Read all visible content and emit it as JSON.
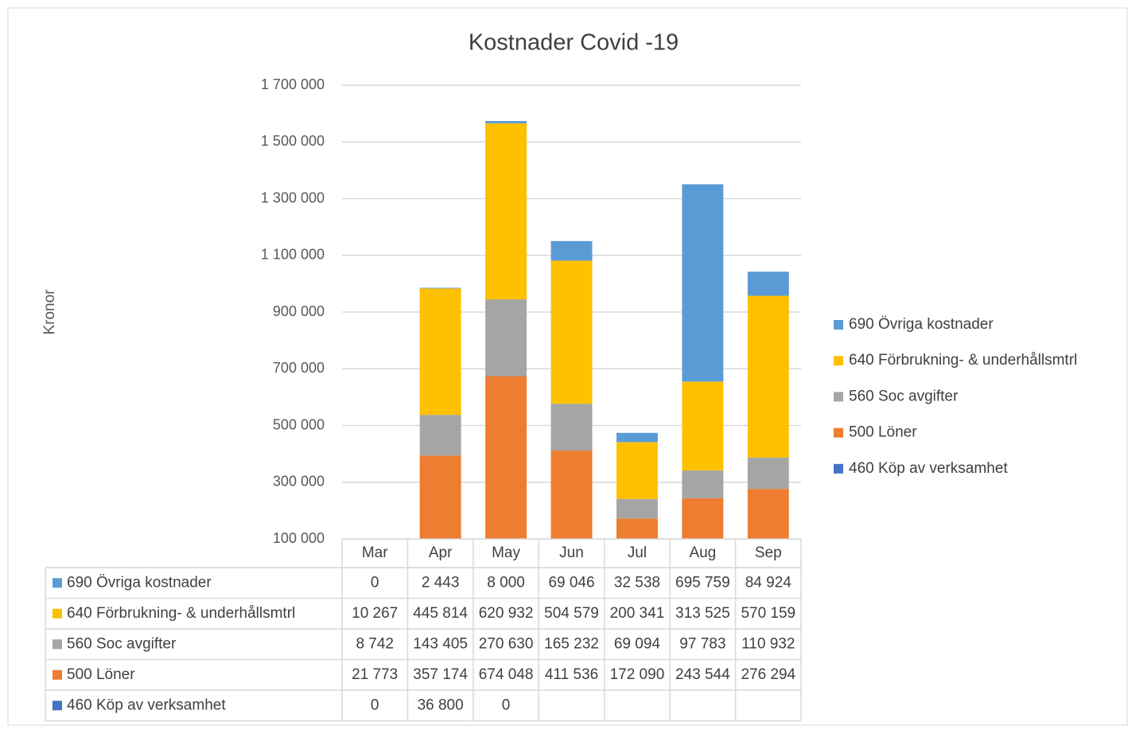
{
  "chart_data": {
    "type": "bar",
    "stacked": true,
    "title": "Kostnader Covid -19",
    "y_label": "Kronor",
    "categories": [
      "Mar",
      "Apr",
      "May",
      "Jun",
      "Jul",
      "Aug",
      "Sep"
    ],
    "series": [
      {
        "name": "460 Köp av verksamhet",
        "color": "#4472c4",
        "values": [
          0,
          36800,
          0,
          null,
          null,
          null,
          null
        ],
        "value_labels": [
          "0",
          "36 800",
          "0",
          null,
          null,
          null,
          null
        ]
      },
      {
        "name": "500 Löner",
        "color": "#ed7d31",
        "values": [
          21773,
          357174,
          674048,
          411536,
          172090,
          243544,
          276294
        ],
        "value_labels": [
          "21 773",
          "357 174",
          "674 048",
          "411 536",
          "172 090",
          "243 544",
          "276 294"
        ]
      },
      {
        "name": "560 Soc avgifter",
        "color": "#a5a5a5",
        "values": [
          8742,
          143405,
          270630,
          165232,
          69094,
          97783,
          110932
        ],
        "value_labels": [
          "8 742",
          "143 405",
          "270 630",
          "165 232",
          "69 094",
          "97 783",
          "110 932"
        ]
      },
      {
        "name": "640 Förbrukning- & underhållsmtrl",
        "color": "#ffc000",
        "values": [
          10267,
          445814,
          620932,
          504579,
          200341,
          313525,
          570159
        ],
        "value_labels": [
          "10 267",
          "445 814",
          "620 932",
          "504 579",
          "200 341",
          "313 525",
          "570 159"
        ]
      },
      {
        "name": "690 Övriga kostnader",
        "color": "#5b9bd5",
        "values": [
          0,
          2443,
          8000,
          69046,
          32538,
          695759,
          84924
        ],
        "value_labels": [
          "0",
          "2 443",
          "8 000",
          "69 046",
          "32 538",
          "695 759",
          "84 924"
        ]
      }
    ],
    "ylim": [
      100000,
      1700000
    ],
    "yticks": [
      {
        "value": 100000,
        "label": "100 000"
      },
      {
        "value": 300000,
        "label": "300 000"
      },
      {
        "value": 500000,
        "label": "500 000"
      },
      {
        "value": 700000,
        "label": "700 000"
      },
      {
        "value": 900000,
        "label": "900 000"
      },
      {
        "value": 1100000,
        "label": "1 100 000"
      },
      {
        "value": 1300000,
        "label": "1 300 000"
      },
      {
        "value": 1500000,
        "label": "1 500 000"
      },
      {
        "value": 1700000,
        "label": "1 700 000"
      }
    ],
    "grid": true,
    "legend": "right",
    "data_table": true
  }
}
